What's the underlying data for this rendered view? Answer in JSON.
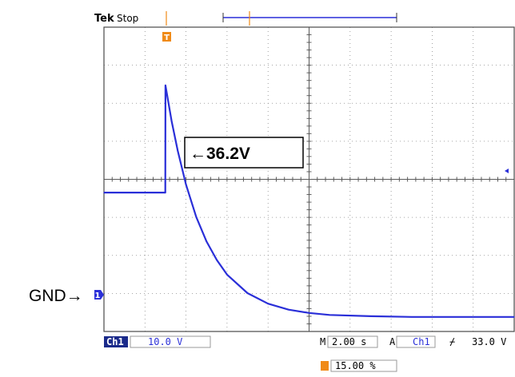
{
  "header": {
    "brand": "Tek",
    "status": "Stop"
  },
  "ground_label": "GND→",
  "annotation": {
    "text": "←36.2V"
  },
  "readouts": {
    "channel": "Ch1",
    "volts_per_div": "10.0 V",
    "time_prefix": "M",
    "time_per_div": "2.00 s",
    "trigger_prefix": "A",
    "trigger_source": "Ch1",
    "trigger_slope": "⌿",
    "trigger_level": "33.0 V",
    "trigger_position": "15.00 %"
  },
  "markers": {
    "trigger_glyph": "T",
    "ground_glyph": "1"
  },
  "colors": {
    "trace": "#2a2fd8",
    "marker": "#f08a17",
    "readout_bg": "#1a2a8a",
    "grid": "#8a8a8a"
  },
  "chart_data": {
    "type": "line",
    "title": "",
    "xlabel": "",
    "ylabel": "",
    "x_units": "s",
    "y_units": "V",
    "xlim": [
      -3,
      17
    ],
    "ylim": [
      -1,
      45
    ],
    "grid": true,
    "series": [
      {
        "x": [
          -3.0,
          -1.0,
          -0.01,
          0.0,
          0.3,
          0.6,
          1.0,
          1.5,
          2.0,
          2.5,
          3.0,
          4.0,
          5.0,
          6.0,
          7.0,
          8.0,
          10.0,
          12.0,
          14.0,
          17.0
        ],
        "values": [
          20.0,
          20.0,
          20.0,
          36.2,
          30.8,
          26.3,
          21.2,
          16.3,
          12.6,
          9.8,
          7.6,
          4.8,
          3.2,
          2.3,
          1.8,
          1.5,
          1.3,
          1.2,
          1.2,
          1.2
        ]
      }
    ],
    "annotations": [
      "←36.2V"
    ]
  }
}
